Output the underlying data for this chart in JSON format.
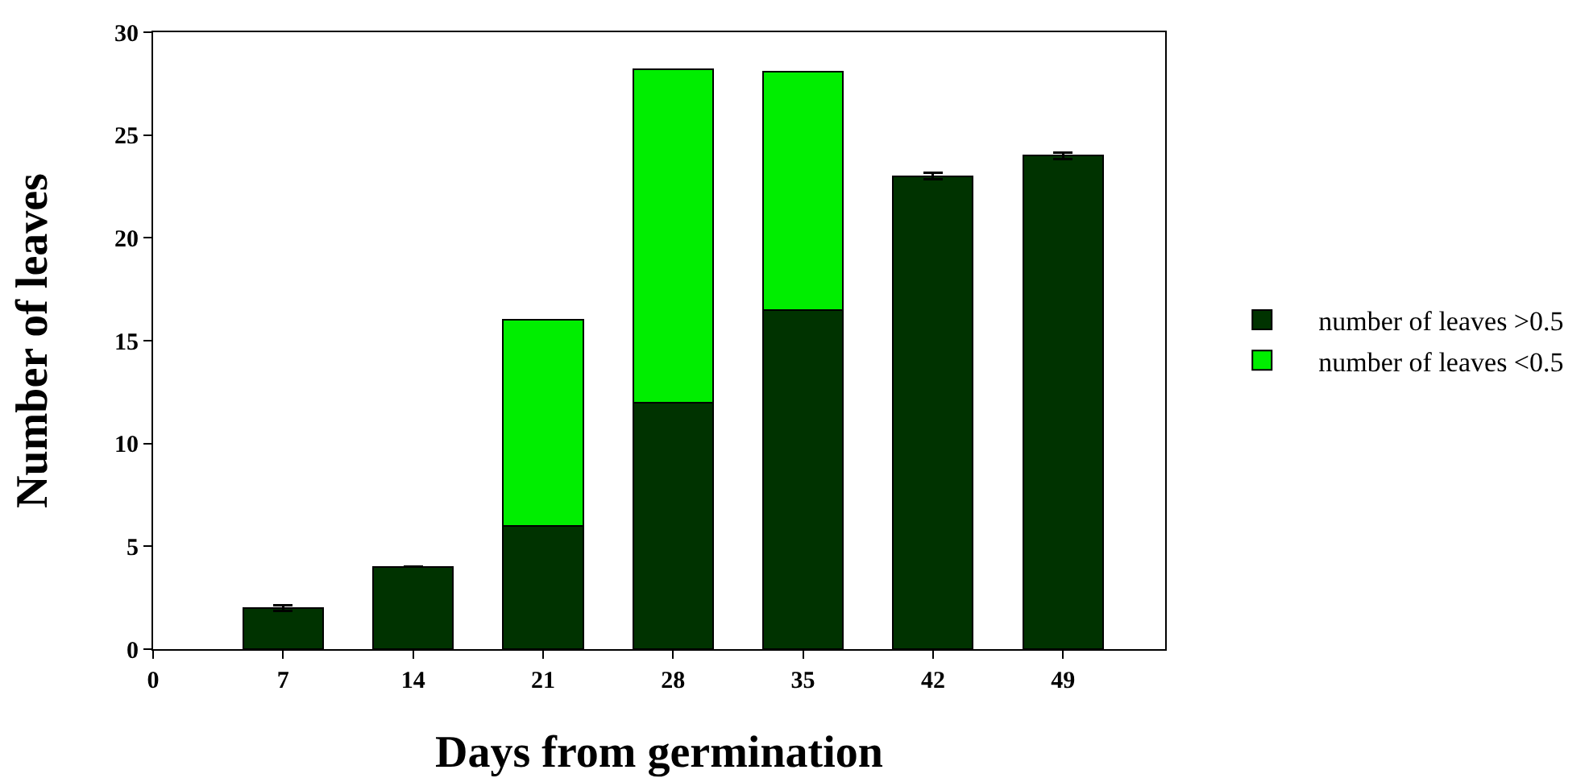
{
  "chart_data": {
    "type": "bar",
    "stacked": true,
    "xlabel": "Days from germination",
    "ylabel": "Number of leaves",
    "x": [
      7,
      14,
      21,
      28,
      35,
      42,
      49
    ],
    "series": [
      {
        "name": "number of leaves >0.5",
        "color": "#003300",
        "values": [
          2,
          4,
          6,
          12,
          16.5,
          23,
          24
        ],
        "errors": [
          0.15,
          null,
          null,
          null,
          null,
          0.15,
          0.15
        ]
      },
      {
        "name": "number of leaves <0.5",
        "color": "#00ee00",
        "values": [
          null,
          null,
          10,
          16.2,
          11.6,
          null,
          null
        ]
      }
    ],
    "xlim": [
      0,
      54.5
    ],
    "xticks": [
      0,
      7,
      14,
      21,
      28,
      35,
      42,
      49
    ],
    "ylim": [
      0,
      30
    ],
    "yticks": [
      0,
      5,
      10,
      15,
      20,
      25,
      30
    ],
    "grid": false,
    "legend": "right"
  }
}
